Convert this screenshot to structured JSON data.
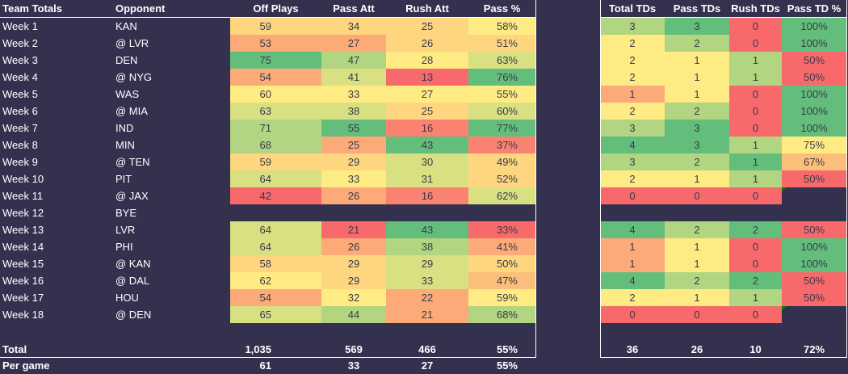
{
  "headers": {
    "left": [
      "Team Totals",
      "Opponent",
      "Off Plays",
      "Pass Att",
      "Rush Att",
      "Pass %"
    ],
    "right": [
      "Total TDs",
      "Pass TDs",
      "Rush TDs",
      "Pass TD %"
    ]
  },
  "palette": {
    "G": "#63be7b",
    "g": "#b1d580",
    "l": "#d8e082",
    "Y": "#ffeb84",
    "y": "#fed680",
    "o": "#fcaa78",
    "p": "#fcbf7b",
    "r": "#f98370",
    "R": "#f8696b"
  },
  "rows": [
    {
      "week": "Week 1",
      "opp": "KAN",
      "vals": [
        "59",
        "34",
        "25",
        "58%"
      ],
      "tds": [
        "3",
        "3",
        "0",
        "100%"
      ],
      "colors": "yyyYgGRG"
    },
    {
      "week": "Week 2",
      "opp": "@ LVR",
      "vals": [
        "53",
        "27",
        "26",
        "51%"
      ],
      "tds": [
        "2",
        "2",
        "0",
        "100%"
      ],
      "colors": "ooyyYgRG"
    },
    {
      "week": "Week 3",
      "opp": "DEN",
      "vals": [
        "75",
        "47",
        "28",
        "63%"
      ],
      "tds": [
        "2",
        "1",
        "1",
        "50%"
      ],
      "colors": "GgYlYYgR"
    },
    {
      "week": "Week 4",
      "opp": "@ NYG",
      "vals": [
        "54",
        "41",
        "13",
        "76%"
      ],
      "tds": [
        "2",
        "1",
        "1",
        "50%"
      ],
      "colors": "olRGYYgR"
    },
    {
      "week": "Week 5",
      "opp": "WAS",
      "vals": [
        "60",
        "33",
        "27",
        "55%"
      ],
      "tds": [
        "1",
        "1",
        "0",
        "100%"
      ],
      "colors": "YYYYoYRG"
    },
    {
      "week": "Week 6",
      "opp": "@ MIA",
      "vals": [
        "63",
        "38",
        "25",
        "60%"
      ],
      "tds": [
        "2",
        "2",
        "0",
        "100%"
      ],
      "colors": "llylYgRG"
    },
    {
      "week": "Week 7",
      "opp": "IND",
      "vals": [
        "71",
        "55",
        "16",
        "77%"
      ],
      "tds": [
        "3",
        "3",
        "0",
        "100%"
      ],
      "colors": "gGrGgGRG"
    },
    {
      "week": "Week 8",
      "opp": "MIN",
      "vals": [
        "68",
        "25",
        "43",
        "37%"
      ],
      "tds": [
        "4",
        "3",
        "1",
        "75%"
      ],
      "colors": "goGrGGgY"
    },
    {
      "week": "Week 9",
      "opp": "@ TEN",
      "vals": [
        "59",
        "29",
        "30",
        "49%"
      ],
      "tds": [
        "3",
        "2",
        "1",
        "67%"
      ],
      "colors": "yylyggGp"
    },
    {
      "week": "Week 10",
      "opp": "PIT",
      "vals": [
        "64",
        "33",
        "31",
        "52%"
      ],
      "tds": [
        "2",
        "1",
        "1",
        "50%"
      ],
      "colors": "lYlyYYgR"
    },
    {
      "week": "Week 11",
      "opp": "@ JAX",
      "vals": [
        "42",
        "26",
        "16",
        "62%"
      ],
      "tds": [
        "0",
        "0",
        "0",
        ""
      ],
      "colors": "RorlRRR-",
      "flag": true
    },
    {
      "week": "Week 12",
      "opp": "BYE",
      "vals": [
        "",
        "",
        "",
        ""
      ],
      "tds": [
        "",
        "",
        "",
        ""
      ],
      "colors": "--------"
    },
    {
      "week": "Week 13",
      "opp": "LVR",
      "vals": [
        "64",
        "21",
        "43",
        "33%"
      ],
      "tds": [
        "4",
        "2",
        "2",
        "50%"
      ],
      "colors": "lRGRGgGR"
    },
    {
      "week": "Week 14",
      "opp": "PHI",
      "vals": [
        "64",
        "26",
        "38",
        "41%"
      ],
      "tds": [
        "1",
        "1",
        "0",
        "100%"
      ],
      "colors": "logooYRG"
    },
    {
      "week": "Week 15",
      "opp": "@ KAN",
      "vals": [
        "58",
        "29",
        "29",
        "50%"
      ],
      "tds": [
        "1",
        "1",
        "0",
        "100%"
      ],
      "colors": "yylyoYRG"
    },
    {
      "week": "Week 16",
      "opp": "@ DAL",
      "vals": [
        "62",
        "29",
        "33",
        "47%"
      ],
      "tds": [
        "4",
        "2",
        "2",
        "50%"
      ],
      "colors": "YylpGgGR"
    },
    {
      "week": "Week 17",
      "opp": "HOU",
      "vals": [
        "54",
        "32",
        "22",
        "59%"
      ],
      "tds": [
        "2",
        "1",
        "1",
        "50%"
      ],
      "colors": "oYoYYYgR"
    },
    {
      "week": "Week 18",
      "opp": "@ DEN",
      "vals": [
        "65",
        "44",
        "21",
        "68%"
      ],
      "tds": [
        "0",
        "0",
        "0",
        ""
      ],
      "colors": "lgogRRR-",
      "flag": true
    }
  ],
  "total": {
    "label": "Total",
    "vals": [
      "1,035",
      "569",
      "466",
      "55%"
    ],
    "tds": [
      "36",
      "26",
      "10",
      "72%"
    ]
  },
  "per_game": {
    "label": "Per game",
    "vals": [
      "61",
      "33",
      "27",
      "55%"
    ]
  }
}
